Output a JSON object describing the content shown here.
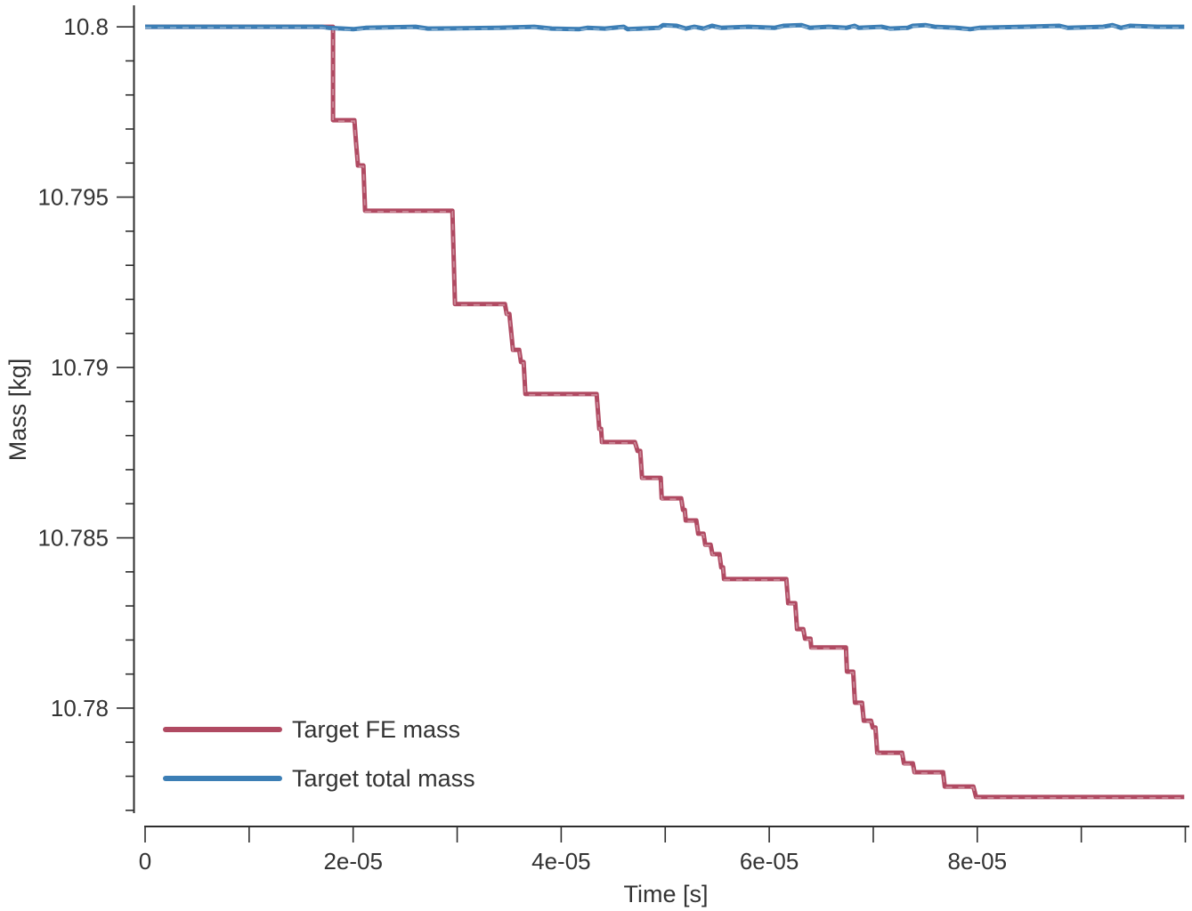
{
  "chart_data": {
    "type": "line",
    "title": "",
    "xlabel": "Time [s]",
    "ylabel": "Mass [kg]",
    "xlim": [
      0,
      0.0001
    ],
    "ylim": [
      10.7765,
      10.8005
    ],
    "grid": false,
    "legend_position": "bottom-left-inside",
    "x_ticks": {
      "minor_step": 1e-05,
      "major": [
        0,
        2e-05,
        4e-05,
        6e-05,
        8e-05
      ],
      "labels": [
        "0",
        "2e-05",
        "4e-05",
        "6e-05",
        "8e-05"
      ]
    },
    "y_ticks": {
      "minor_step": 0.001,
      "minor_min": 10.777,
      "major": [
        10.8,
        10.795,
        10.79,
        10.785,
        10.78
      ],
      "labels": [
        "10.8",
        "10.795",
        "10.79",
        "10.785",
        "10.78"
      ]
    },
    "series": [
      {
        "name": "Target FE mass",
        "color": "#b04a62",
        "points": [
          [
            0,
            10.8
          ],
          [
            1.807e-05,
            10.8
          ],
          [
            1.807e-05,
            10.79726
          ],
          [
            2.012e-05,
            10.79726
          ],
          [
            2.029e-05,
            10.79656
          ],
          [
            2.046e-05,
            10.79593
          ],
          [
            2.098e-05,
            10.79593
          ],
          [
            2.115e-05,
            10.7946
          ],
          [
            2.954e-05,
            10.7946
          ],
          [
            2.979e-05,
            10.79186
          ],
          [
            3.459e-05,
            10.79186
          ],
          [
            3.476e-05,
            10.79157
          ],
          [
            3.502e-05,
            10.79157
          ],
          [
            3.536e-05,
            10.79052
          ],
          [
            3.596e-05,
            10.79052
          ],
          [
            3.613e-05,
            10.79016
          ],
          [
            3.639e-05,
            10.79016
          ],
          [
            3.656e-05,
            10.78922
          ],
          [
            4.341e-05,
            10.78922
          ],
          [
            4.366e-05,
            10.7882
          ],
          [
            4.383e-05,
            10.7882
          ],
          [
            4.392e-05,
            10.78781
          ],
          [
            4.709e-05,
            10.78781
          ],
          [
            4.734e-05,
            10.78755
          ],
          [
            4.76e-05,
            10.78755
          ],
          [
            4.777e-05,
            10.78676
          ],
          [
            4.957e-05,
            10.78676
          ],
          [
            4.966e-05,
            10.78616
          ],
          [
            5.154e-05,
            10.78616
          ],
          [
            5.171e-05,
            10.78582
          ],
          [
            5.188e-05,
            10.78582
          ],
          [
            5.197e-05,
            10.78551
          ],
          [
            5.299e-05,
            10.78551
          ],
          [
            5.317e-05,
            10.78512
          ],
          [
            5.368e-05,
            10.78512
          ],
          [
            5.385e-05,
            10.7848
          ],
          [
            5.436e-05,
            10.7848
          ],
          [
            5.454e-05,
            10.78452
          ],
          [
            5.522e-05,
            10.78452
          ],
          [
            5.539e-05,
            10.78413
          ],
          [
            5.556e-05,
            10.78413
          ],
          [
            5.565e-05,
            10.78379
          ],
          [
            6.164e-05,
            10.78379
          ],
          [
            6.182e-05,
            10.78308
          ],
          [
            6.25e-05,
            10.78308
          ],
          [
            6.267e-05,
            10.78232
          ],
          [
            6.327e-05,
            10.78232
          ],
          [
            6.344e-05,
            10.78204
          ],
          [
            6.396e-05,
            10.78204
          ],
          [
            6.404e-05,
            10.78178
          ],
          [
            6.738e-05,
            10.78178
          ],
          [
            6.747e-05,
            10.78107
          ],
          [
            6.807e-05,
            10.78107
          ],
          [
            6.824e-05,
            10.78016
          ],
          [
            6.892e-05,
            10.78016
          ],
          [
            6.909e-05,
            10.77963
          ],
          [
            6.978e-05,
            10.77963
          ],
          [
            6.995e-05,
            10.77943
          ],
          [
            7.021e-05,
            10.77943
          ],
          [
            7.038e-05,
            10.77869
          ],
          [
            7.277e-05,
            10.77869
          ],
          [
            7.295e-05,
            10.77838
          ],
          [
            7.38e-05,
            10.77838
          ],
          [
            7.397e-05,
            10.77812
          ],
          [
            7.671e-05,
            10.77812
          ],
          [
            7.688e-05,
            10.7777
          ],
          [
            7.962e-05,
            10.7777
          ],
          [
            7.988e-05,
            10.77739
          ],
          [
            9.99e-05,
            10.77739
          ]
        ]
      },
      {
        "name": "Target total mass",
        "color": "#3c7eb5",
        "points": [
          [
            0,
            10.8
          ],
          [
            1.7e-05,
            10.8
          ],
          [
            1.77e-05,
            10.79997
          ],
          [
            2e-05,
            10.79993
          ],
          [
            2.12e-05,
            10.79997
          ],
          [
            2.6e-05,
            10.8
          ],
          [
            2.72e-05,
            10.79995
          ],
          [
            3.4e-05,
            10.79997
          ],
          [
            3.74e-05,
            10.8
          ],
          [
            3.91e-05,
            10.79995
          ],
          [
            4.17e-05,
            10.79993
          ],
          [
            4.25e-05,
            10.79997
          ],
          [
            4.42e-05,
            10.79995
          ],
          [
            4.6e-05,
            10.8
          ],
          [
            4.64e-05,
            10.79993
          ],
          [
            4.94e-05,
            10.79997
          ],
          [
            4.98e-05,
            10.80005
          ],
          [
            5.11e-05,
            10.80003
          ],
          [
            5.2e-05,
            10.79995
          ],
          [
            5.28e-05,
            10.8
          ],
          [
            5.37e-05,
            10.79995
          ],
          [
            5.45e-05,
            10.80003
          ],
          [
            5.54e-05,
            10.79997
          ],
          [
            5.8e-05,
            10.8
          ],
          [
            6.05e-05,
            10.79997
          ],
          [
            6.14e-05,
            10.80003
          ],
          [
            6.31e-05,
            10.80005
          ],
          [
            6.39e-05,
            10.79997
          ],
          [
            6.57e-05,
            10.8
          ],
          [
            6.74e-05,
            10.79997
          ],
          [
            6.82e-05,
            10.80003
          ],
          [
            6.86e-05,
            10.79997
          ],
          [
            7.08e-05,
            10.8
          ],
          [
            7.16e-05,
            10.79995
          ],
          [
            7.33e-05,
            10.79997
          ],
          [
            7.38e-05,
            10.80003
          ],
          [
            7.5e-05,
            10.80005
          ],
          [
            7.59e-05,
            10.8
          ],
          [
            7.8e-05,
            10.79997
          ],
          [
            7.93e-05,
            10.79993
          ],
          [
            8.02e-05,
            10.79997
          ],
          [
            8.45e-05,
            10.8
          ],
          [
            8.79e-05,
            10.80003
          ],
          [
            8.87e-05,
            10.79997
          ],
          [
            9.21e-05,
            10.8
          ],
          [
            9.3e-05,
            10.80005
          ],
          [
            9.38e-05,
            10.79997
          ],
          [
            9.47e-05,
            10.80003
          ],
          [
            9.73e-05,
            10.8
          ],
          [
            9.99e-05,
            10.8
          ]
        ]
      }
    ]
  },
  "legend": {
    "items": [
      {
        "label": "Target FE mass"
      },
      {
        "label": "Target total mass"
      }
    ]
  }
}
